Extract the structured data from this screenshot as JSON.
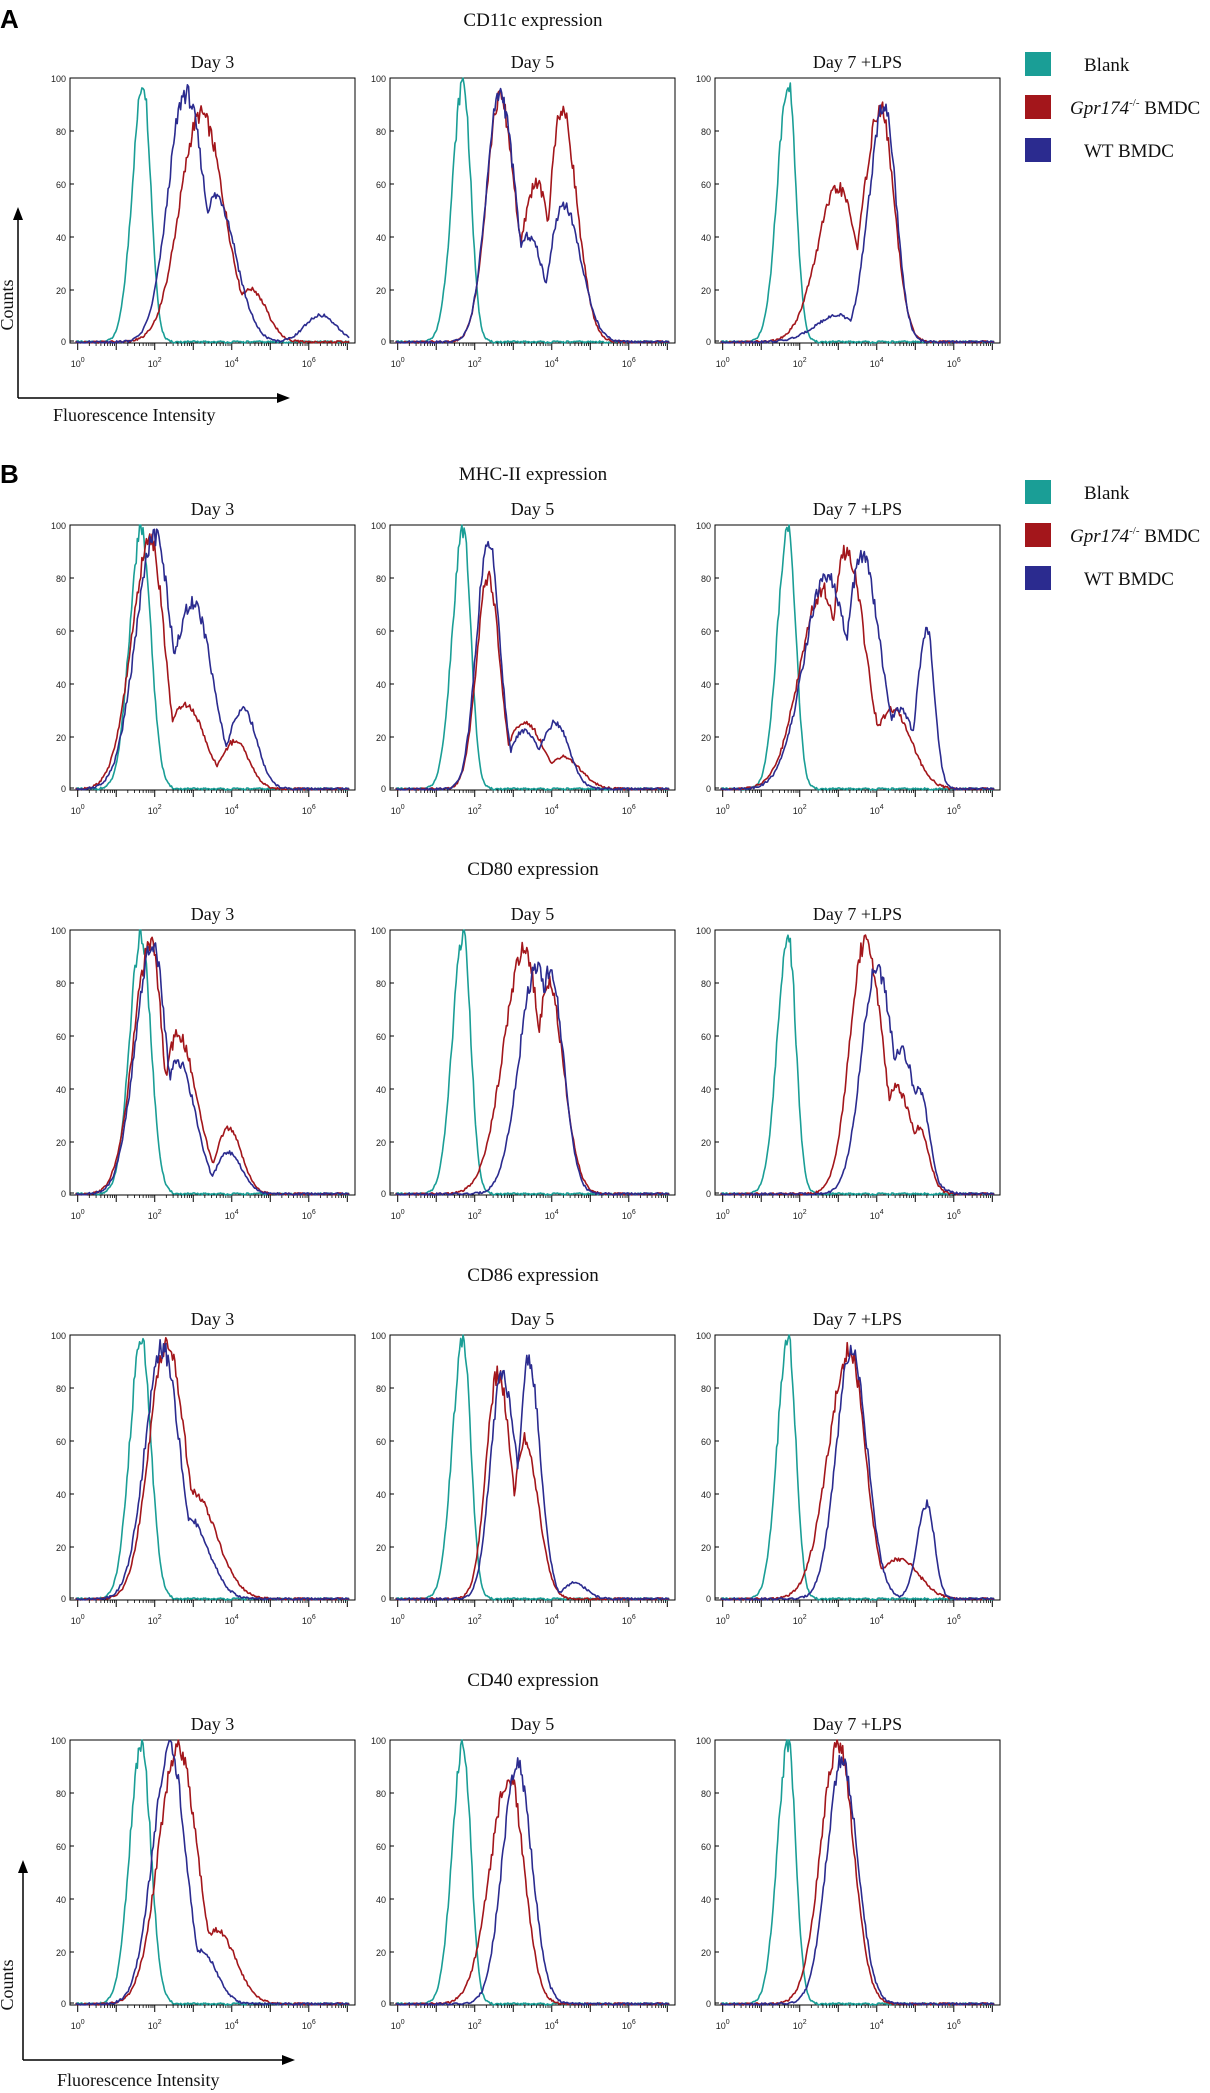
{
  "panel_labels": {
    "a": "A",
    "b": "B"
  },
  "legend": [
    {
      "key": "blank",
      "label": "Blank",
      "italic_prefix": "",
      "color": "#1a9e96"
    },
    {
      "key": "ko",
      "label": " BMDC",
      "italic_prefix": "Gpr174",
      "superscript": "-/-",
      "color": "#a3161b"
    },
    {
      "key": "wt",
      "label": "WT BMDC",
      "italic_prefix": "",
      "color": "#2b2b8f"
    }
  ],
  "axis_labels": {
    "y": "Counts",
    "x": "Fluorescence Intensity"
  },
  "y_ticks": [
    "100",
    "80",
    "60",
    "40",
    "20",
    "0"
  ],
  "x_tick_exponents": [
    "0",
    "2",
    "4",
    "6"
  ],
  "x_tick_base": "10",
  "colors": {
    "blank": "#1a9e96",
    "ko": "#a3161b",
    "wt": "#2b2b8f",
    "axis": "#000000"
  },
  "chart_data": [
    {
      "title": "CD11c expression",
      "panel": "A",
      "type": "line",
      "xscale": "log",
      "xlim": [
        -0.2,
        7.2
      ],
      "ylim": [
        0,
        100
      ],
      "x_exponents": [
        0,
        2,
        4,
        6
      ],
      "charts": [
        {
          "title": "Day 3",
          "series": [
            {
              "name": "Blank",
              "peaks": [
                [
                  1.7,
                  98,
                  0.28,
                  0.2
                ]
              ]
            },
            {
              "name": "Gpr174-/- BMDC",
              "peaks": [
                [
                  3.2,
                  86,
                  0.55,
                  0.6
                ],
                [
                  4.5,
                  20,
                  0.5,
                  0.4
                ]
              ]
            },
            {
              "name": "WT BMDC",
              "peaks": [
                [
                  2.8,
                  94,
                  0.45,
                  0.5
                ],
                [
                  3.6,
                  55,
                  0.5,
                  0.5
                ],
                [
                  6.3,
                  10,
                  0.4,
                  0.4
                ]
              ]
            }
          ]
        },
        {
          "title": "Day 5",
          "series": [
            {
              "name": "Blank",
              "peaks": [
                [
                  1.7,
                  98,
                  0.28,
                  0.2
                ]
              ]
            },
            {
              "name": "Gpr174-/- BMDC",
              "peaks": [
                [
                  2.65,
                  92,
                  0.35,
                  0.4
                ],
                [
                  3.6,
                  60,
                  0.4,
                  0.4
                ],
                [
                  4.25,
                  88,
                  0.3,
                  0.4
                ]
              ]
            },
            {
              "name": "WT BMDC",
              "peaks": [
                [
                  2.65,
                  94,
                  0.35,
                  0.4
                ],
                [
                  3.4,
                  40,
                  0.4,
                  0.4
                ],
                [
                  4.3,
                  52,
                  0.35,
                  0.45
                ]
              ]
            }
          ]
        },
        {
          "title": "Day 7 +LPS",
          "series": [
            {
              "name": "Blank",
              "peaks": [
                [
                  1.7,
                  98,
                  0.28,
                  0.2
                ]
              ]
            },
            {
              "name": "Gpr174-/- BMDC",
              "peaks": [
                [
                  3.0,
                  58,
                  0.55,
                  0.5
                ],
                [
                  4.1,
                  88,
                  0.45,
                  0.35
                ]
              ]
            },
            {
              "name": "WT BMDC",
              "peaks": [
                [
                  3.0,
                  10,
                  0.6,
                  0.5
                ],
                [
                  4.2,
                  90,
                  0.4,
                  0.3
                ]
              ]
            }
          ]
        }
      ]
    },
    {
      "title": "MHC-II expression",
      "panel": "B",
      "type": "line",
      "xscale": "log",
      "xlim": [
        -0.2,
        7.2
      ],
      "ylim": [
        0,
        100
      ],
      "x_exponents": [
        0,
        2,
        4,
        6
      ],
      "charts": [
        {
          "title": "Day 3",
          "series": [
            {
              "name": "Blank",
              "peaks": [
                [
                  1.65,
                  98,
                  0.3,
                  0.25
                ]
              ]
            },
            {
              "name": "Gpr174-/- BMDC",
              "peaks": [
                [
                  1.9,
                  94,
                  0.5,
                  0.35
                ],
                [
                  2.8,
                  32,
                  0.5,
                  0.5
                ],
                [
                  4.1,
                  18,
                  0.4,
                  0.35
                ]
              ]
            },
            {
              "name": "WT BMDC",
              "peaks": [
                [
                  2.0,
                  95,
                  0.5,
                  0.45
                ],
                [
                  3.0,
                  70,
                  0.6,
                  0.5
                ],
                [
                  4.3,
                  30,
                  0.4,
                  0.35
                ]
              ]
            }
          ]
        },
        {
          "title": "Day 5",
          "series": [
            {
              "name": "Blank",
              "peaks": [
                [
                  1.7,
                  98,
                  0.28,
                  0.2
                ]
              ]
            },
            {
              "name": "Gpr174-/- BMDC",
              "peaks": [
                [
                  2.35,
                  80,
                  0.3,
                  0.3
                ],
                [
                  3.3,
                  25,
                  0.5,
                  0.5
                ],
                [
                  4.3,
                  12,
                  0.45,
                  0.45
                ]
              ]
            },
            {
              "name": "WT BMDC",
              "peaks": [
                [
                  2.35,
                  94,
                  0.3,
                  0.3
                ],
                [
                  3.3,
                  22,
                  0.4,
                  0.4
                ],
                [
                  4.1,
                  25,
                  0.4,
                  0.35
                ]
              ]
            }
          ]
        },
        {
          "title": "Day 7 +LPS",
          "series": [
            {
              "name": "Blank",
              "peaks": [
                [
                  1.7,
                  98,
                  0.28,
                  0.2
                ]
              ]
            },
            {
              "name": "Gpr174-/- BMDC",
              "peaks": [
                [
                  2.6,
                  75,
                  0.6,
                  0.5
                ],
                [
                  3.2,
                  90,
                  0.4,
                  0.5
                ],
                [
                  4.4,
                  30,
                  0.5,
                  0.5
                ]
              ]
            },
            {
              "name": "WT BMDC",
              "peaks": [
                [
                  2.7,
                  80,
                  0.6,
                  0.6
                ],
                [
                  3.6,
                  88,
                  0.4,
                  0.5
                ],
                [
                  4.6,
                  30,
                  0.4,
                  0.4
                ],
                [
                  5.3,
                  60,
                  0.25,
                  0.2
                ]
              ]
            }
          ]
        }
      ]
    },
    {
      "title": "CD80 expression",
      "panel": "B",
      "type": "line",
      "xscale": "log",
      "xlim": [
        -0.2,
        7.2
      ],
      "ylim": [
        0,
        100
      ],
      "x_exponents": [
        0,
        2,
        4,
        6
      ],
      "charts": [
        {
          "title": "Day 3",
          "series": [
            {
              "name": "Blank",
              "peaks": [
                [
                  1.65,
                  98,
                  0.3,
                  0.25
                ]
              ]
            },
            {
              "name": "Gpr174-/- BMDC",
              "peaks": [
                [
                  1.9,
                  95,
                  0.45,
                  0.3
                ],
                [
                  2.6,
                  60,
                  0.4,
                  0.5
                ],
                [
                  3.9,
                  25,
                  0.3,
                  0.35
                ]
              ]
            },
            {
              "name": "WT BMDC",
              "peaks": [
                [
                  1.95,
                  95,
                  0.45,
                  0.35
                ],
                [
                  2.6,
                  50,
                  0.4,
                  0.45
                ],
                [
                  3.9,
                  16,
                  0.3,
                  0.35
                ]
              ]
            }
          ]
        },
        {
          "title": "Day 5",
          "series": [
            {
              "name": "Blank",
              "peaks": [
                [
                  1.7,
                  98,
                  0.28,
                  0.2
                ]
              ]
            },
            {
              "name": "Gpr174-/- BMDC",
              "peaks": [
                [
                  3.3,
                  92,
                  0.55,
                  0.4
                ],
                [
                  3.9,
                  80,
                  0.3,
                  0.4
                ]
              ]
            },
            {
              "name": "WT BMDC",
              "peaks": [
                [
                  3.6,
                  85,
                  0.45,
                  0.45
                ],
                [
                  3.95,
                  85,
                  0.3,
                  0.35
                ]
              ]
            }
          ]
        },
        {
          "title": "Day 7 +LPS",
          "series": [
            {
              "name": "Blank",
              "peaks": [
                [
                  1.7,
                  98,
                  0.28,
                  0.2
                ]
              ]
            },
            {
              "name": "Gpr174-/- BMDC",
              "peaks": [
                [
                  3.7,
                  95,
                  0.4,
                  0.45
                ],
                [
                  4.5,
                  40,
                  0.4,
                  0.45
                ],
                [
                  5.1,
                  25,
                  0.25,
                  0.25
                ]
              ]
            },
            {
              "name": "WT BMDC",
              "peaks": [
                [
                  4.0,
                  86,
                  0.4,
                  0.45
                ],
                [
                  4.6,
                  55,
                  0.4,
                  0.45
                ],
                [
                  5.1,
                  40,
                  0.25,
                  0.25
                ]
              ]
            }
          ]
        }
      ]
    },
    {
      "title": "CD86 expression",
      "panel": "B",
      "type": "line",
      "xscale": "log",
      "xlim": [
        -0.2,
        7.2
      ],
      "ylim": [
        0,
        100
      ],
      "x_exponents": [
        0,
        2,
        4,
        6
      ],
      "charts": [
        {
          "title": "Day 3",
          "series": [
            {
              "name": "Blank",
              "peaks": [
                [
                  1.65,
                  98,
                  0.3,
                  0.25
                ]
              ]
            },
            {
              "name": "Gpr174-/- BMDC",
              "peaks": [
                [
                  2.3,
                  96,
                  0.45,
                  0.5
                ],
                [
                  3.0,
                  40,
                  0.5,
                  0.6
                ]
              ]
            },
            {
              "name": "WT BMDC",
              "peaks": [
                [
                  2.2,
                  95,
                  0.45,
                  0.45
                ],
                [
                  2.9,
                  30,
                  0.5,
                  0.5
                ]
              ]
            }
          ]
        },
        {
          "title": "Day 5",
          "series": [
            {
              "name": "Blank",
              "peaks": [
                [
                  1.7,
                  98,
                  0.28,
                  0.2
                ]
              ]
            },
            {
              "name": "Gpr174-/- BMDC",
              "peaks": [
                [
                  2.6,
                  85,
                  0.3,
                  0.35
                ],
                [
                  3.3,
                  60,
                  0.3,
                  0.35
                ]
              ]
            },
            {
              "name": "WT BMDC",
              "peaks": [
                [
                  2.7,
                  84,
                  0.3,
                  0.4
                ],
                [
                  3.4,
                  90,
                  0.25,
                  0.3
                ],
                [
                  4.6,
                  6,
                  0.3,
                  0.3
                ]
              ]
            }
          ]
        },
        {
          "title": "Day 7 +LPS",
          "series": [
            {
              "name": "Blank",
              "peaks": [
                [
                  1.7,
                  98,
                  0.28,
                  0.2
                ]
              ]
            },
            {
              "name": "Gpr174-/- BMDC",
              "peaks": [
                [
                  3.3,
                  94,
                  0.55,
                  0.4
                ],
                [
                  4.6,
                  15,
                  0.6,
                  0.5
                ]
              ]
            },
            {
              "name": "WT BMDC",
              "peaks": [
                [
                  3.35,
                  94,
                  0.4,
                  0.4
                ],
                [
                  5.3,
                  36,
                  0.25,
                  0.2
                ]
              ]
            }
          ]
        }
      ]
    },
    {
      "title": "CD40 expression",
      "panel": "B",
      "type": "line",
      "xscale": "log",
      "xlim": [
        -0.2,
        7.2
      ],
      "ylim": [
        0,
        100
      ],
      "x_exponents": [
        0,
        2,
        4,
        6
      ],
      "charts": [
        {
          "title": "Day 3",
          "series": [
            {
              "name": "Blank",
              "peaks": [
                [
                  1.65,
                  98,
                  0.3,
                  0.25
                ]
              ]
            },
            {
              "name": "Gpr174-/- BMDC",
              "peaks": [
                [
                  2.6,
                  97,
                  0.5,
                  0.5
                ],
                [
                  3.6,
                  28,
                  0.4,
                  0.5
                ]
              ]
            },
            {
              "name": "WT BMDC",
              "peaks": [
                [
                  2.4,
                  96,
                  0.45,
                  0.4
                ],
                [
                  3.2,
                  20,
                  0.35,
                  0.4
                ]
              ]
            }
          ]
        },
        {
          "title": "Day 5",
          "series": [
            {
              "name": "Blank",
              "peaks": [
                [
                  1.7,
                  98,
                  0.28,
                  0.2
                ]
              ]
            },
            {
              "name": "Gpr174-/- BMDC",
              "peaks": [
                [
                  2.9,
                  86,
                  0.5,
                  0.38
                ]
              ]
            },
            {
              "name": "WT BMDC",
              "peaks": [
                [
                  3.1,
                  91,
                  0.38,
                  0.38
                ]
              ]
            }
          ]
        },
        {
          "title": "Day 7 +LPS",
          "series": [
            {
              "name": "Blank",
              "peaks": [
                [
                  1.7,
                  98,
                  0.28,
                  0.2
                ]
              ]
            },
            {
              "name": "Gpr174-/- BMDC",
              "peaks": [
                [
                  3.0,
                  98,
                  0.45,
                  0.4
                ]
              ]
            },
            {
              "name": "WT BMDC",
              "peaks": [
                [
                  3.1,
                  92,
                  0.4,
                  0.4
                ]
              ]
            }
          ]
        }
      ]
    }
  ]
}
